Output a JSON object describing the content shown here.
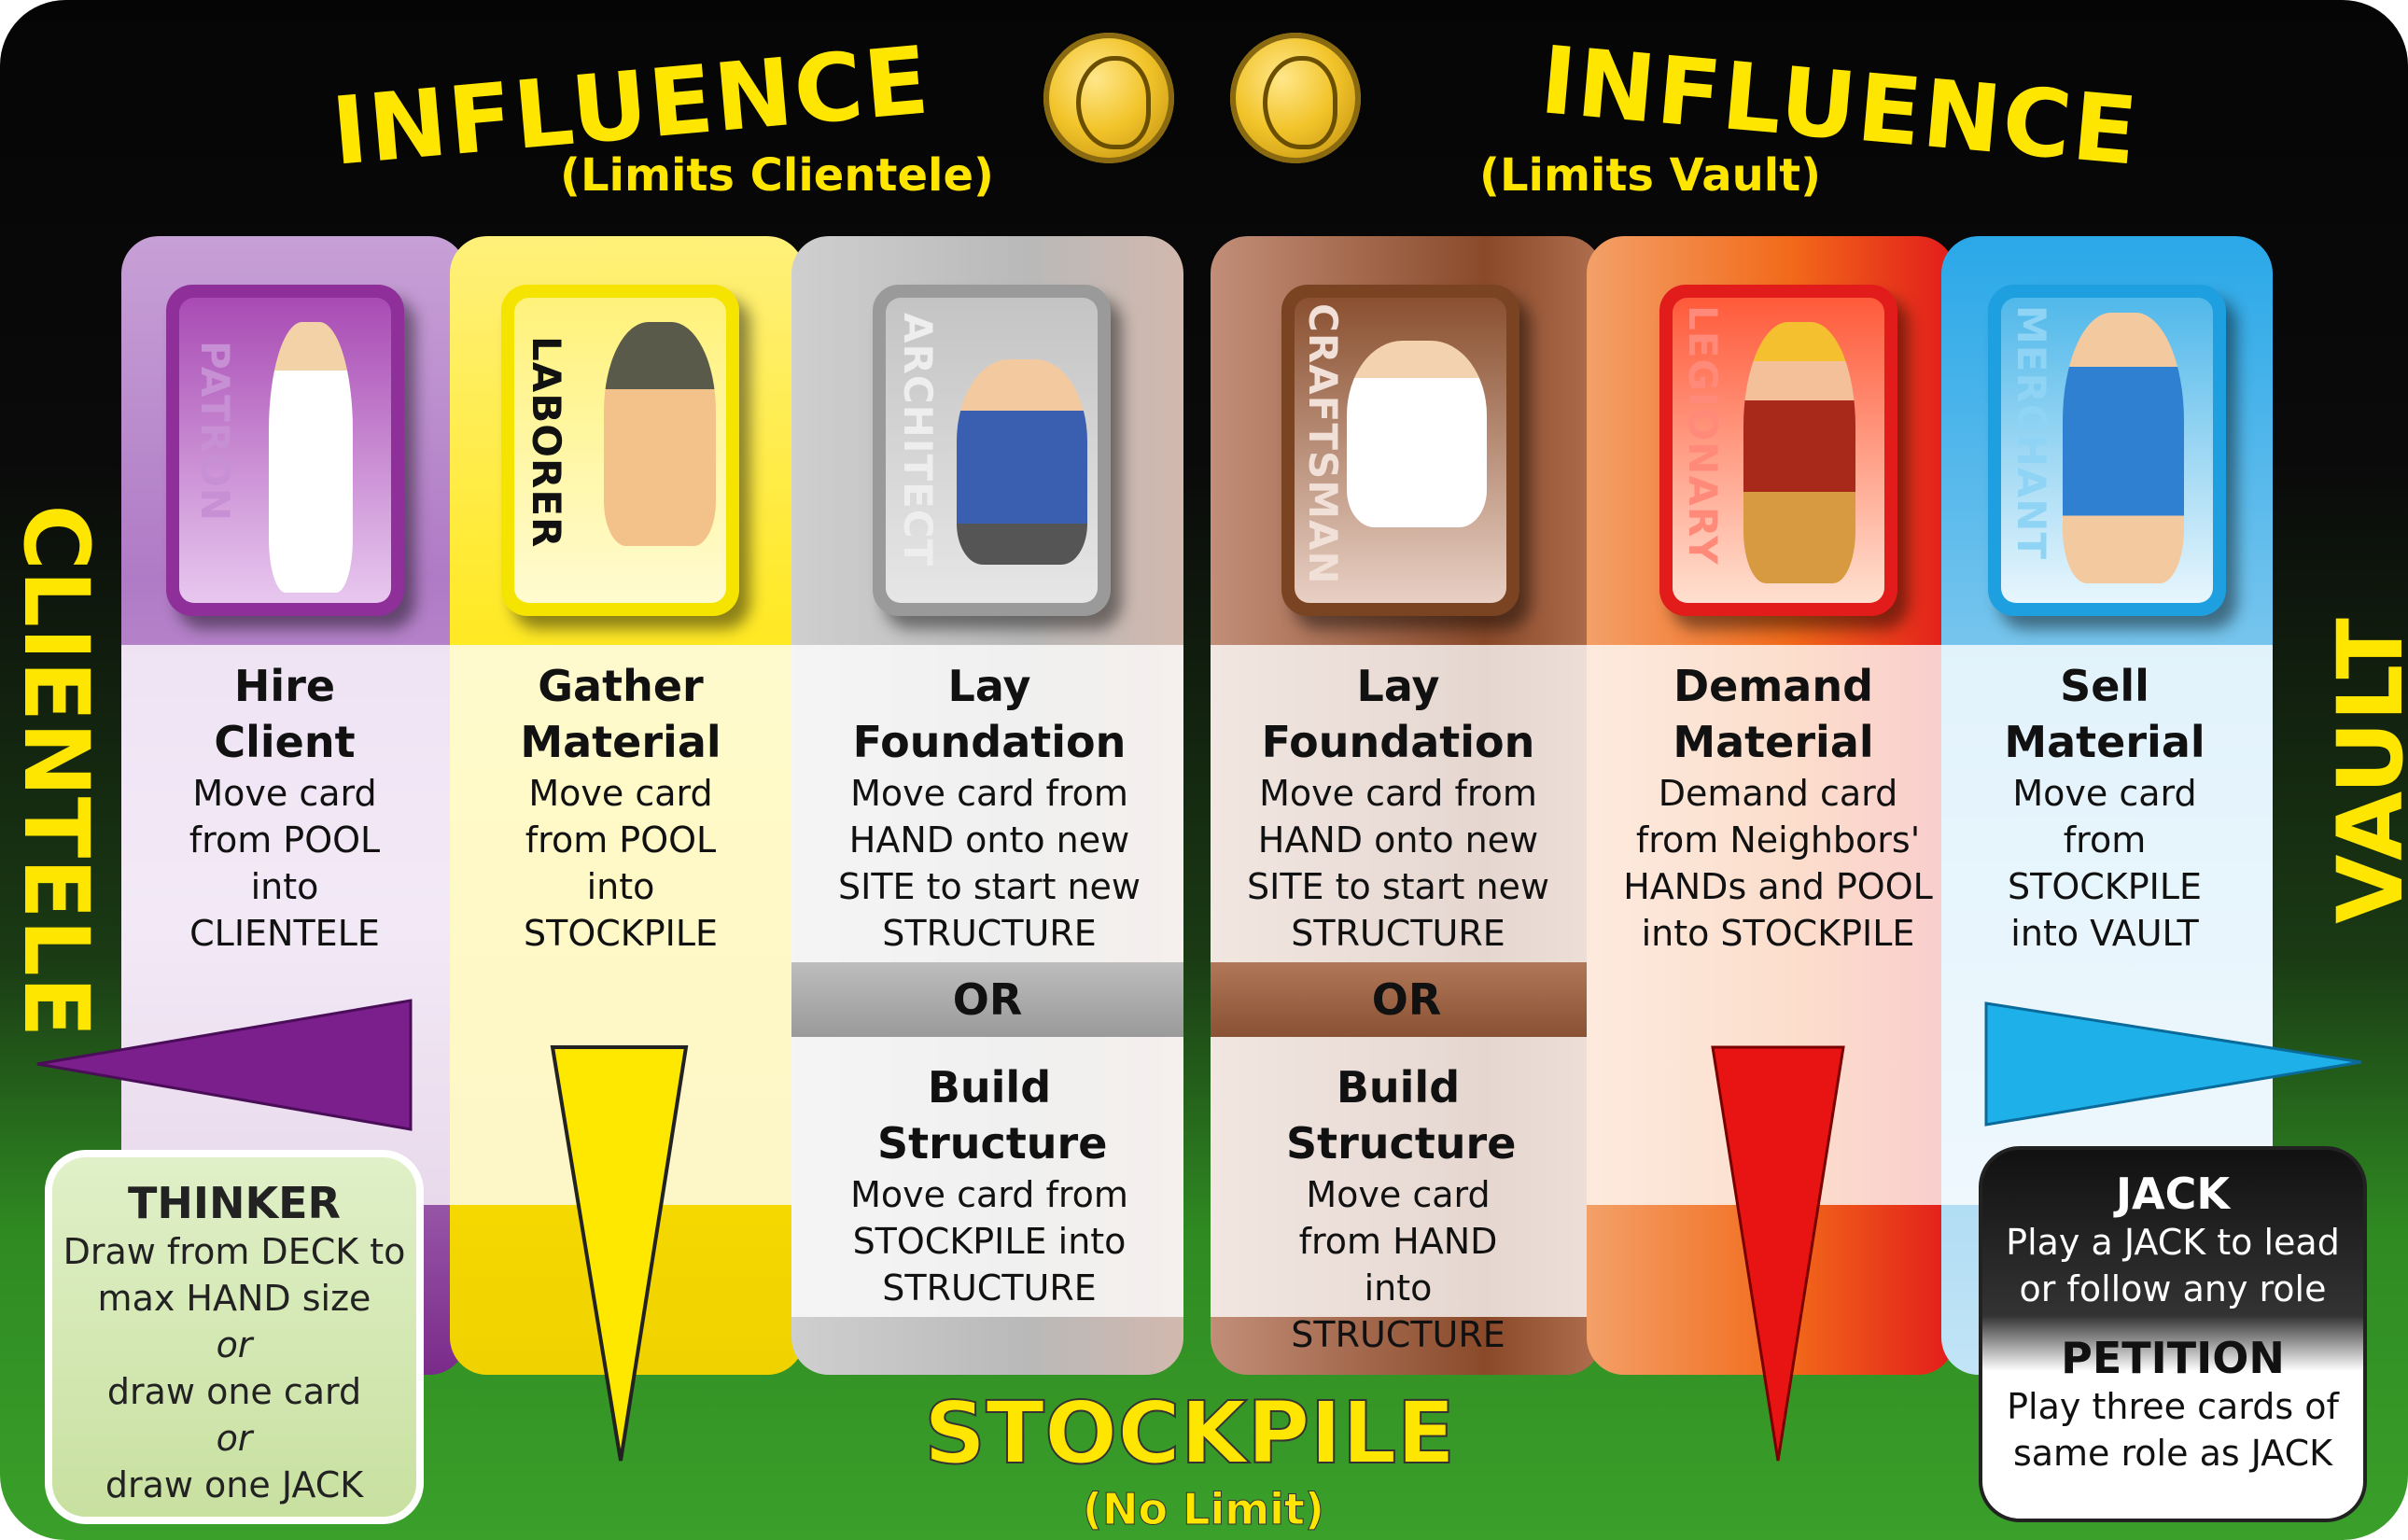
{
  "header": {
    "left_title": "INFLUENCE",
    "left_subtitle": "(Limits Clientele)",
    "right_title": "INFLUENCE",
    "right_subtitle": "(Limits Vault)"
  },
  "side_labels": {
    "left": "CLIENTELE",
    "right": "VAULT"
  },
  "bottom": {
    "title": "STOCKPILE",
    "subtitle": "(No Limit)"
  },
  "roles": [
    {
      "card": "PATRON",
      "title": "Hire Client",
      "body": "Move card from POOL into CLIENTELE",
      "color": "#8e2f9a"
    },
    {
      "card": "LABORER",
      "title": "Gather Material",
      "body": "Move card from POOL into STOCKPILE",
      "color": "#f5e400"
    },
    {
      "card": "ARCHITECT",
      "title": "Lay Foundation",
      "body": "Move card from HAND onto new SITE to start new STRUCTURE",
      "or": "OR",
      "title2": "Build Structure",
      "body2": "Move card from STOCKPILE into STRUCTURE",
      "color": "#9a9a9a"
    },
    {
      "card": "CRAFTSMAN",
      "title": "Lay Foundation",
      "body": "Move card from HAND onto new SITE to start new STRUCTURE",
      "or": "OR",
      "title2": "Build Structure",
      "body2": "Move card from HAND into STRUCTURE",
      "color": "#7a4422"
    },
    {
      "card": "LEGIONARY",
      "title": "Demand Material",
      "body": "Demand card from Neighbors' HANDs and POOL into STOCKPILE",
      "color": "#e21b1b"
    },
    {
      "card": "MERCHANT",
      "title": "Sell Material",
      "body": "Move card from STOCKPILE into VAULT",
      "color": "#1ea0e0"
    }
  ],
  "thinker": {
    "title": "THINKER",
    "line1": "Draw from DECK to max HAND size",
    "or1": "or",
    "line2": "draw one card",
    "or2": "or",
    "line3": "draw one JACK"
  },
  "jack": {
    "title": "JACK",
    "body": "Play a JACK to lead or follow any role",
    "title2": "PETITION",
    "body2": "Play three cards of same role as JACK"
  }
}
